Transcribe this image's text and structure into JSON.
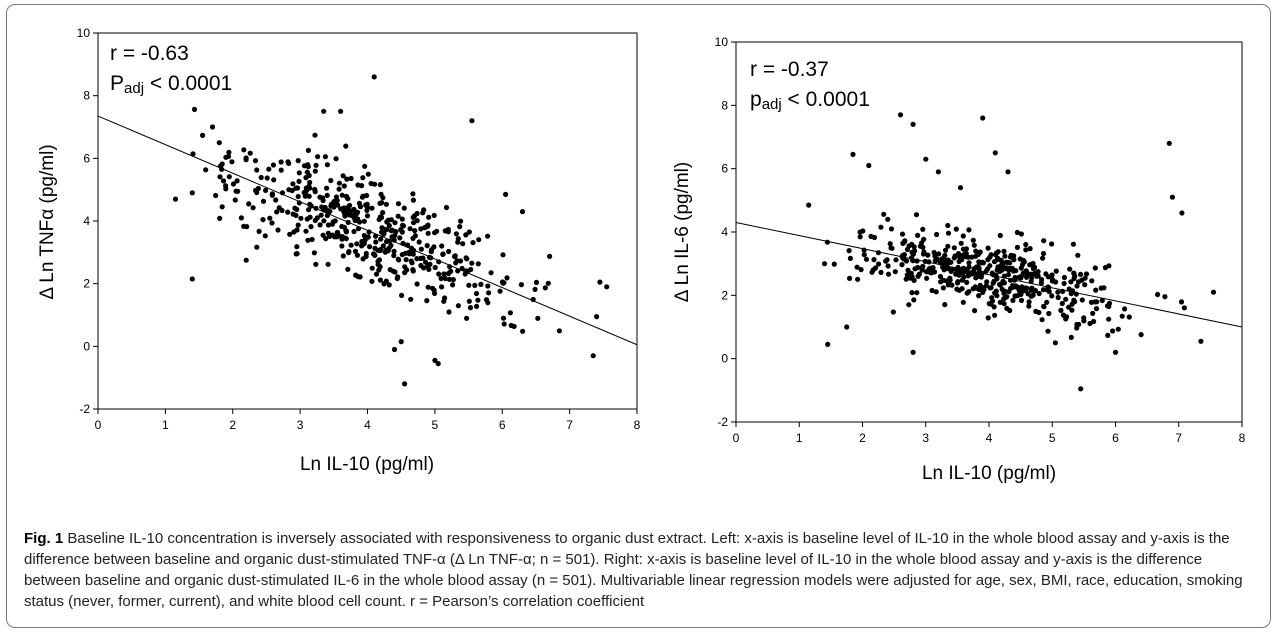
{
  "caption": {
    "label": "Fig. 1",
    "text": "Baseline IL-10 concentration is inversely associated with responsiveness to organic dust extract. Left: x-axis is baseline level of IL-10 in the whole blood assay and y-axis is the difference between baseline and organic dust-stimulated TNF-α (Δ Ln TNF-α; n = 501). Right: x-axis is baseline level of IL-10 in the whole blood assay and y-axis is the difference between baseline and organic dust-stimulated IL-6 in the whole blood assay (n = 501). Multivariable linear regression models were adjusted for age, sex, BMI, race, education, smoking status (never, former, current), and white blood cell count. r = Pearson’s correlation coefficient"
  },
  "chart_data": [
    {
      "type": "scatter",
      "xlabel": "Ln IL-10 (pg/ml)",
      "ylabel": "Δ Ln TNFα (pg/ml)",
      "xlim": [
        0,
        8
      ],
      "ylim": [
        -2,
        10
      ],
      "xticks": [
        0,
        1,
        2,
        3,
        4,
        5,
        6,
        7,
        8
      ],
      "yticks": [
        -2,
        0,
        2,
        4,
        6,
        8,
        10
      ],
      "annotations": {
        "r": "r = -0.63",
        "p_main": "P",
        "p_sub": "adj",
        "p_rest": " < 0.0001"
      },
      "regression": {
        "x": [
          0,
          8
        ],
        "y": [
          7.35,
          0.05
        ]
      },
      "points": {
        "n": 501,
        "cluster_center": [
          4.0,
          3.3
        ],
        "x_range": [
          1.15,
          7.6
        ],
        "outliers": [
          [
            1.15,
            4.7
          ],
          [
            1.4,
            4.9
          ],
          [
            1.4,
            2.15
          ],
          [
            1.7,
            7.0
          ],
          [
            1.8,
            6.5
          ],
          [
            2.05,
            4.95
          ],
          [
            2.2,
            2.75
          ],
          [
            3.35,
            7.5
          ],
          [
            3.6,
            7.5
          ],
          [
            4.1,
            8.6
          ],
          [
            4.4,
            -0.1
          ],
          [
            4.5,
            0.15
          ],
          [
            4.55,
            -1.2
          ],
          [
            5.0,
            -0.45
          ],
          [
            5.05,
            -0.55
          ],
          [
            5.55,
            7.2
          ],
          [
            6.05,
            4.85
          ],
          [
            6.3,
            4.3
          ],
          [
            7.35,
            -0.3
          ],
          [
            7.4,
            0.95
          ],
          [
            7.45,
            2.05
          ],
          [
            7.55,
            1.9
          ]
        ]
      }
    },
    {
      "type": "scatter",
      "xlabel": "Ln IL-10 (pg/ml)",
      "ylabel": "Δ Ln IL-6 (pg/ml)",
      "xlim": [
        0,
        8
      ],
      "ylim": [
        -2,
        10
      ],
      "xticks": [
        0,
        1,
        2,
        3,
        4,
        5,
        6,
        7,
        8
      ],
      "yticks": [
        -2,
        0,
        2,
        4,
        6,
        8,
        10
      ],
      "annotations": {
        "r": "r = -0.37",
        "p_main": "p",
        "p_sub": "adj",
        "p_rest": " < 0.0001"
      },
      "regression": {
        "x": [
          0,
          8
        ],
        "y": [
          4.3,
          1.0
        ]
      },
      "points": {
        "n": 501,
        "cluster_center": [
          4.0,
          2.45
        ],
        "x_range": [
          1.15,
          7.6
        ],
        "outliers": [
          [
            1.15,
            4.85
          ],
          [
            1.4,
            3.0
          ],
          [
            1.45,
            0.45
          ],
          [
            1.75,
            1.0
          ],
          [
            1.85,
            6.45
          ],
          [
            2.1,
            6.1
          ],
          [
            2.4,
            4.4
          ],
          [
            2.6,
            7.7
          ],
          [
            2.8,
            0.2
          ],
          [
            2.8,
            7.4
          ],
          [
            3.0,
            6.3
          ],
          [
            3.2,
            5.9
          ],
          [
            3.55,
            5.4
          ],
          [
            3.9,
            7.6
          ],
          [
            4.1,
            6.5
          ],
          [
            4.3,
            5.9
          ],
          [
            5.45,
            -0.95
          ],
          [
            5.05,
            0.5
          ],
          [
            6.0,
            0.2
          ],
          [
            6.85,
            6.8
          ],
          [
            6.9,
            5.1
          ],
          [
            7.05,
            4.6
          ],
          [
            7.35,
            0.55
          ],
          [
            7.55,
            2.1
          ]
        ]
      }
    }
  ]
}
